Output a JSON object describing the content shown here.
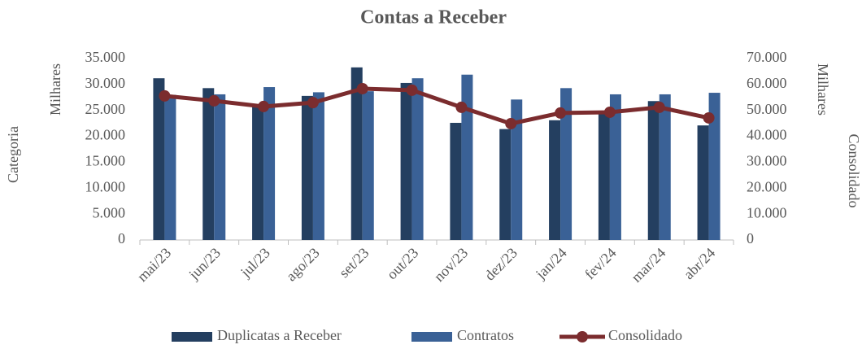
{
  "chart_data": {
    "type": "bar",
    "title": "Contas a Receber",
    "y_label": "Milhares",
    "y2_label": "Milhares",
    "y_title_outer": "Categoria",
    "y2_title_outer": "Consolidado",
    "categories": [
      "mai/23",
      "jun/23",
      "jul/23",
      "ago/23",
      "set/23",
      "out/23",
      "nov/23",
      "dez/23",
      "jan/24",
      "fev/24",
      "mar/24",
      "abr/24"
    ],
    "series": [
      {
        "name": "Duplicatas a Receber",
        "type": "bar",
        "color": "#243f60",
        "values": [
          31200,
          29300,
          25700,
          27800,
          33300,
          30300,
          22600,
          21400,
          23100,
          24600,
          26800,
          22100
        ]
      },
      {
        "name": "Contratos",
        "type": "bar",
        "color": "#3a6196",
        "values": [
          28000,
          28100,
          29500,
          28500,
          28700,
          31200,
          31900,
          27100,
          29300,
          28100,
          28100,
          28400
        ]
      },
      {
        "name": "Consolidado",
        "type": "line",
        "axis": "y2",
        "color": "#7b2c2e",
        "values": [
          55600,
          53700,
          51500,
          53000,
          58400,
          57800,
          51200,
          44900,
          49000,
          49300,
          51200,
          47100
        ]
      }
    ],
    "ylim": [
      0,
      35000
    ],
    "yticks": [
      0,
      {
        "value": 5000,
        "label": "5.000"
      },
      {
        "value": 10000,
        "label": "10.000"
      },
      {
        "value": 15000,
        "label": "15.000"
      },
      {
        "value": 20000,
        "label": "20.000"
      },
      {
        "value": 25000,
        "label": "25.000"
      },
      {
        "value": 30000,
        "label": "30.000"
      },
      {
        "value": 35000,
        "label": "35.000"
      }
    ],
    "y2lim": [
      0,
      70000
    ],
    "y2ticks": [
      0,
      {
        "value": 10000,
        "label": "10.000"
      },
      {
        "value": 20000,
        "label": "20.000"
      },
      {
        "value": 30000,
        "label": "30.000"
      },
      {
        "value": 40000,
        "label": "40.000"
      },
      {
        "value": 50000,
        "label": "50.000"
      },
      {
        "value": 60000,
        "label": "60.000"
      },
      {
        "value": 70000,
        "label": "70.000"
      }
    ],
    "grid": false,
    "legend": "bottom"
  }
}
